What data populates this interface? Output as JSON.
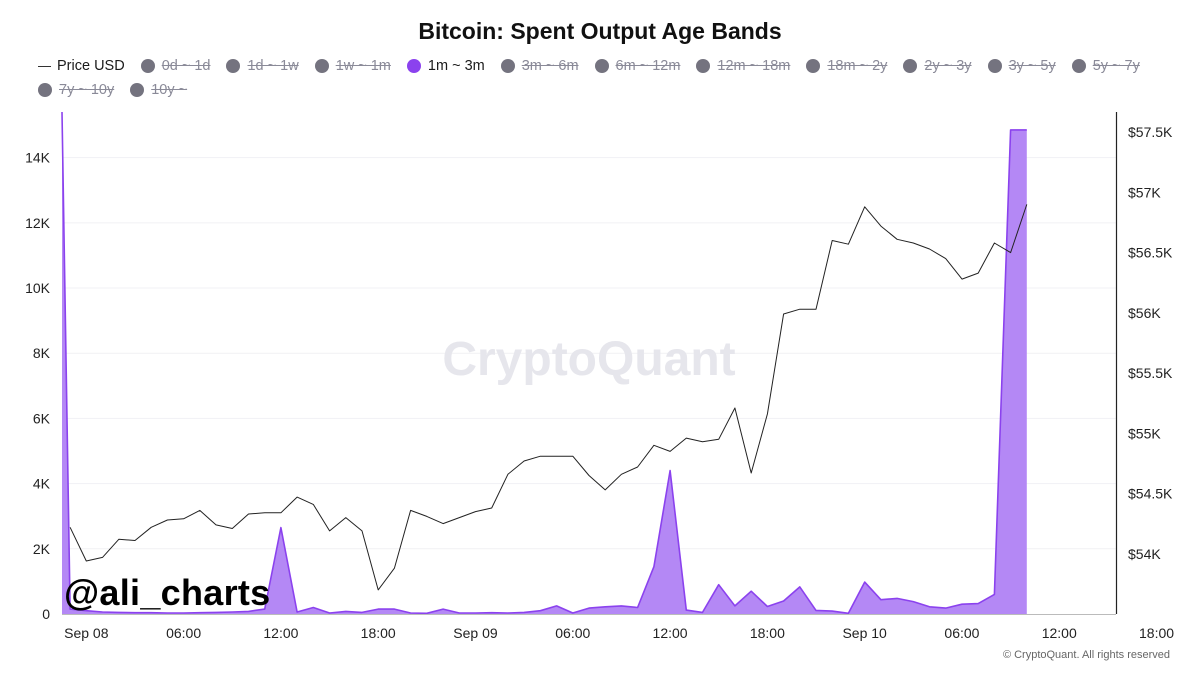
{
  "chart_data": {
    "type": "area",
    "title": "Bitcoin: Spent Output Age Bands",
    "watermark": "CryptoQuant",
    "handle": "@ali_charts",
    "copyright": "© CryptoQuant. All rights reserved",
    "colors": {
      "band_fill": "#b488f5",
      "band_line": "#8b42ee",
      "price_line": "#222222",
      "legend_off": "#74737f"
    },
    "legend": [
      {
        "label": "Price USD",
        "kind": "line",
        "active": true
      },
      {
        "label": "0d ~ 1d",
        "kind": "dot",
        "active": false
      },
      {
        "label": "1d ~ 1w",
        "kind": "dot",
        "active": false
      },
      {
        "label": "1w ~ 1m",
        "kind": "dot",
        "active": false
      },
      {
        "label": "1m ~ 3m",
        "kind": "dot",
        "active": true
      },
      {
        "label": "3m ~ 6m",
        "kind": "dot",
        "active": false
      },
      {
        "label": "6m ~ 12m",
        "kind": "dot",
        "active": false
      },
      {
        "label": "12m ~ 18m",
        "kind": "dot",
        "active": false
      },
      {
        "label": "18m ~ 2y",
        "kind": "dot",
        "active": false
      },
      {
        "label": "2y ~ 3y",
        "kind": "dot",
        "active": false
      },
      {
        "label": "3y ~ 5y",
        "kind": "dot",
        "active": false
      },
      {
        "label": "5y ~ 7y",
        "kind": "dot",
        "active": false
      },
      {
        "label": "7y ~ 10y",
        "kind": "dot",
        "active": false
      },
      {
        "label": "10y ~",
        "kind": "dot",
        "active": false
      }
    ],
    "x_axis": {
      "unit": "hours from Sep 08 00:00",
      "range": [
        -1.5,
        63.5
      ],
      "ticks": [
        {
          "h": 0,
          "label": "Sep 08"
        },
        {
          "h": 6,
          "label": "06:00"
        },
        {
          "h": 12,
          "label": "12:00"
        },
        {
          "h": 18,
          "label": "18:00"
        },
        {
          "h": 24,
          "label": "Sep 09"
        },
        {
          "h": 30,
          "label": "06:00"
        },
        {
          "h": 36,
          "label": "12:00"
        },
        {
          "h": 42,
          "label": "18:00"
        },
        {
          "h": 48,
          "label": "Sep 10"
        },
        {
          "h": 54,
          "label": "06:00"
        },
        {
          "h": 60,
          "label": "12:00"
        },
        {
          "h": 66,
          "label": "18:00"
        }
      ]
    },
    "y_left": {
      "range": [
        0,
        15400
      ],
      "ticks": [
        0,
        2000,
        4000,
        6000,
        8000,
        10000,
        12000,
        14000
      ],
      "labels": [
        "0",
        "2K",
        "4K",
        "6K",
        "8K",
        "10K",
        "12K",
        "14K"
      ]
    },
    "y_right": {
      "range": [
        53500,
        57667
      ],
      "ticks": [
        54000,
        54500,
        55000,
        55500,
        56000,
        56500,
        57000,
        57500
      ],
      "labels": [
        "$54K",
        "$54.5K",
        "$55K",
        "$55.5K",
        "$56K",
        "$56.5K",
        "$57K",
        "$57.5K"
      ]
    },
    "series": [
      {
        "name": "Price USD",
        "axis": "right",
        "x": [
          -1,
          0,
          1,
          2,
          3,
          4,
          5,
          6,
          7,
          8,
          9,
          10,
          11,
          12,
          13,
          14,
          15,
          16,
          17,
          18,
          19,
          20,
          21,
          22,
          23,
          24,
          25,
          26,
          27,
          28,
          29,
          30,
          31,
          32,
          33,
          34,
          35,
          36,
          37,
          38,
          39,
          40,
          41,
          42,
          43,
          44,
          45,
          46,
          47,
          48,
          49,
          50,
          51,
          52,
          53,
          54,
          55,
          56,
          57,
          58
        ],
        "values": [
          54220,
          53940,
          53970,
          54120,
          54110,
          54220,
          54280,
          54290,
          54360,
          54240,
          54210,
          54330,
          54340,
          54340,
          54470,
          54410,
          54190,
          54300,
          54190,
          53700,
          53880,
          54360,
          54310,
          54250,
          54300,
          54350,
          54380,
          54660,
          54770,
          54810,
          54810,
          54810,
          54650,
          54530,
          54660,
          54720,
          54900,
          54850,
          54960,
          54930,
          54950,
          55210,
          54670,
          55160,
          55990,
          56030,
          56030,
          56600,
          56570,
          56880,
          56720,
          56610,
          56580,
          56530,
          56450,
          56280,
          56330,
          56580,
          56500,
          56900
        ]
      },
      {
        "name": "1m ~ 3m",
        "axis": "left",
        "x": [
          -1.5,
          -1,
          0,
          1,
          2,
          3,
          4,
          5,
          6,
          7,
          8,
          9,
          10,
          11,
          12,
          13,
          14,
          15,
          16,
          17,
          18,
          19,
          20,
          21,
          22,
          23,
          24,
          25,
          26,
          27,
          28,
          29,
          30,
          31,
          32,
          33,
          34,
          35,
          36,
          37,
          38,
          39,
          40,
          41,
          42,
          43,
          44,
          45,
          46,
          47,
          48,
          49,
          50,
          51,
          52,
          53,
          54,
          55,
          56,
          57,
          57.3,
          58
        ],
        "values": [
          15400,
          150,
          100,
          60,
          50,
          40,
          40,
          30,
          30,
          40,
          50,
          60,
          80,
          150,
          2650,
          60,
          200,
          30,
          80,
          50,
          150,
          150,
          30,
          20,
          150,
          30,
          30,
          40,
          30,
          50,
          100,
          250,
          30,
          180,
          220,
          250,
          200,
          1450,
          4400,
          120,
          50,
          900,
          250,
          700,
          230,
          400,
          830,
          110,
          90,
          20,
          980,
          440,
          480,
          380,
          220,
          180,
          300,
          320,
          600,
          14850,
          14850,
          14850
        ]
      }
    ]
  }
}
